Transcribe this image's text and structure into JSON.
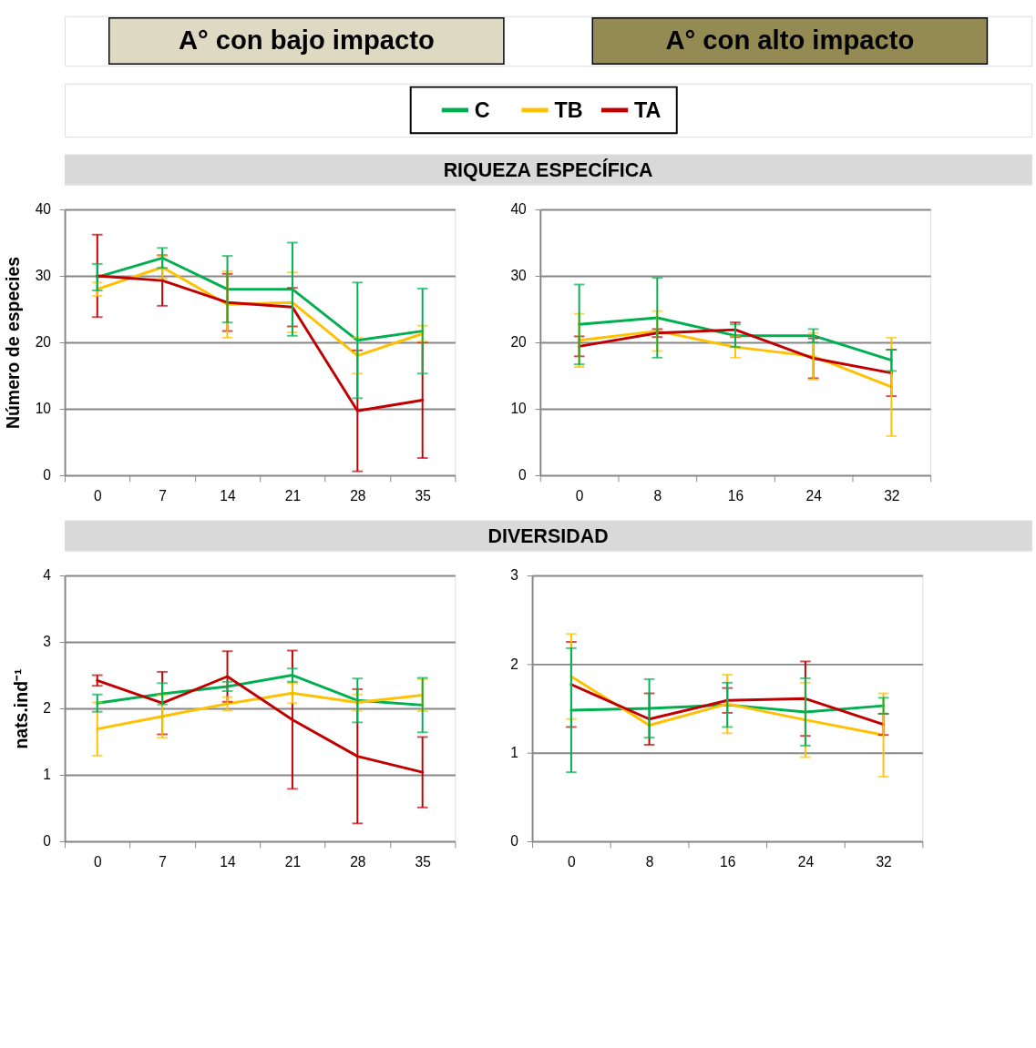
{
  "chart_data": [
    {
      "type": "other",
      "annotations": [
        "A° con bajo impacto",
        "A° con alto impacto"
      ],
      "colors": [
        "#ddd9c3",
        "#948a54"
      ]
    },
    {
      "type": "other",
      "title": "RIQUEZA ESPECÍFICA"
    },
    {
      "type": "line",
      "ylabel": "Número de especies",
      "categories": [
        "0",
        "7",
        "14",
        "21",
        "28",
        "35"
      ],
      "ylim": [
        0,
        40
      ],
      "yticks": [
        0,
        10,
        20,
        30,
        40
      ],
      "grid": "y",
      "legend": "top",
      "series": [
        {
          "name": "C",
          "color": "#00b050",
          "values": [
            29.8,
            32.7,
            28,
            28,
            20.3,
            21.7
          ],
          "errors": [
            2,
            1.5,
            5,
            7,
            8.7,
            6.4
          ]
        },
        {
          "name": "TB",
          "color": "#ffc000",
          "values": [
            28,
            31.3,
            25.7,
            26,
            18,
            21.3
          ],
          "errors": [
            1,
            1.7,
            5,
            4.5,
            2.7,
            1.2
          ]
        },
        {
          "name": "TA",
          "color": "#c00000",
          "values": [
            30,
            29.3,
            26,
            25.3,
            9.7,
            11.3
          ],
          "errors": [
            6.2,
            3.8,
            4.3,
            2.9,
            9.1,
            8.7
          ]
        }
      ]
    },
    {
      "type": "line",
      "categories": [
        "0",
        "8",
        "16",
        "24",
        "32"
      ],
      "ylim": [
        0,
        40
      ],
      "yticks": [
        0,
        10,
        20,
        30,
        40
      ],
      "grid": "y",
      "legend": "top",
      "series": [
        {
          "name": "C",
          "color": "#00b050",
          "values": [
            22.7,
            23.7,
            21,
            21,
            17.3
          ],
          "errors": [
            6,
            6,
            1.7,
            1,
            1.6
          ]
        },
        {
          "name": "TB",
          "color": "#ffc000",
          "values": [
            20.3,
            21.7,
            19.3,
            17.9,
            13.3
          ],
          "errors": [
            4,
            3,
            1.6,
            3.5,
            7.4
          ]
        },
        {
          "name": "TA",
          "color": "#c00000",
          "values": [
            19.4,
            21.4,
            21.9,
            17.6,
            15.4
          ],
          "errors": [
            1.5,
            0.6,
            1.1,
            3,
            3.5
          ]
        }
      ]
    },
    {
      "type": "other",
      "title": "DIVERSIDAD"
    },
    {
      "type": "line",
      "ylabel": "nats.ind⁻¹",
      "categories": [
        "0",
        "7",
        "14",
        "21",
        "28",
        "35"
      ],
      "ylim": [
        0,
        4
      ],
      "yticks": [
        0,
        1,
        2,
        3,
        4
      ],
      "grid": "y",
      "legend": "top",
      "series": [
        {
          "name": "C",
          "color": "#00b050",
          "values": [
            2.08,
            2.22,
            2.33,
            2.5,
            2.12,
            2.05
          ],
          "errors": [
            0.13,
            0.16,
            0.07,
            0.1,
            0.33,
            0.41
          ]
        },
        {
          "name": "TB",
          "color": "#ffc000",
          "values": [
            1.69,
            1.88,
            2.07,
            2.23,
            2.09,
            2.2
          ],
          "errors": [
            0.4,
            0.32,
            0.1,
            0.15,
            0.12,
            0.24
          ]
        },
        {
          "name": "TA",
          "color": "#c00000",
          "values": [
            2.42,
            2.08,
            2.48,
            1.83,
            1.28,
            1.04
          ],
          "errors": [
            0.08,
            0.47,
            0.38,
            1.04,
            1.01,
            0.53
          ]
        }
      ]
    },
    {
      "type": "line",
      "categories": [
        "0",
        "8",
        "16",
        "24",
        "32"
      ],
      "ylim": [
        0,
        3
      ],
      "yticks": [
        0,
        1,
        2,
        3
      ],
      "grid": "y",
      "legend": "top",
      "series": [
        {
          "name": "C",
          "color": "#00b050",
          "values": [
            1.48,
            1.5,
            1.54,
            1.46,
            1.53
          ],
          "errors": [
            0.7,
            0.33,
            0.25,
            0.38,
            0.09
          ]
        },
        {
          "name": "TB",
          "color": "#ffc000",
          "values": [
            1.86,
            1.31,
            1.55,
            1.37,
            1.2
          ],
          "errors": [
            0.48,
            null,
            0.33,
            0.42,
            0.47
          ]
        },
        {
          "name": "TA",
          "color": "#c00000",
          "values": [
            1.77,
            1.38,
            1.59,
            1.61,
            1.32
          ],
          "errors": [
            0.48,
            0.29,
            0.14,
            0.42,
            0.12
          ]
        }
      ]
    }
  ]
}
